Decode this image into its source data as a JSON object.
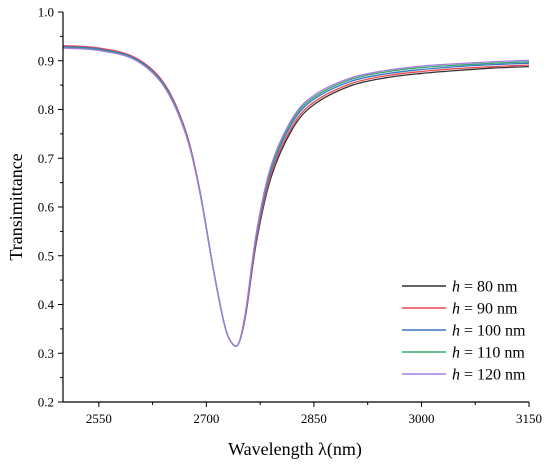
{
  "chart_data": {
    "type": "line",
    "title": "",
    "xlabel": "Wavelength λ(nm)",
    "ylabel": "Transimittance",
    "xlim": [
      2500,
      3150
    ],
    "ylim": [
      0.2,
      1.0
    ],
    "xticks": [
      2550,
      2700,
      2850,
      3000,
      3150
    ],
    "yticks": [
      0.2,
      0.3,
      0.4,
      0.5,
      0.6,
      0.7,
      0.8,
      0.9,
      1.0
    ],
    "ytick_labels": [
      "0.2",
      "0.3",
      "0.4",
      "0.5",
      "0.6",
      "0.7",
      "0.8",
      "0.9",
      "1.0"
    ],
    "x": [
      2500,
      2550,
      2600,
      2640,
      2670,
      2690,
      2710,
      2725,
      2735,
      2745,
      2755,
      2770,
      2790,
      2820,
      2850,
      2900,
      2950,
      3000,
      3050,
      3100,
      3150
    ],
    "legend_position": "bottom-right",
    "series": [
      {
        "name_prefix": "h",
        "name_suffix": " = 80 nm",
        "color": "#333333",
        "values": [
          0.93,
          0.925,
          0.906,
          0.855,
          0.76,
          0.64,
          0.47,
          0.36,
          0.322,
          0.32,
          0.38,
          0.53,
          0.66,
          0.76,
          0.81,
          0.848,
          0.865,
          0.874,
          0.88,
          0.885,
          0.888
        ]
      },
      {
        "name_prefix": "h",
        "name_suffix": " = 90 nm",
        "color": "#e8494f",
        "values": [
          0.931,
          0.926,
          0.907,
          0.856,
          0.761,
          0.64,
          0.47,
          0.36,
          0.322,
          0.32,
          0.382,
          0.535,
          0.666,
          0.766,
          0.815,
          0.852,
          0.869,
          0.878,
          0.884,
          0.888,
          0.891
        ]
      },
      {
        "name_prefix": "h",
        "name_suffix": " = 100 nm",
        "color": "#3a74c4",
        "values": [
          0.929,
          0.924,
          0.905,
          0.853,
          0.758,
          0.638,
          0.47,
          0.36,
          0.322,
          0.32,
          0.385,
          0.542,
          0.674,
          0.773,
          0.821,
          0.857,
          0.873,
          0.882,
          0.888,
          0.892,
          0.895
        ]
      },
      {
        "name_prefix": "h",
        "name_suffix": " = 110 nm",
        "color": "#35a86b",
        "values": [
          0.927,
          0.922,
          0.903,
          0.851,
          0.756,
          0.637,
          0.47,
          0.36,
          0.322,
          0.32,
          0.387,
          0.546,
          0.679,
          0.778,
          0.825,
          0.861,
          0.877,
          0.886,
          0.891,
          0.895,
          0.898
        ]
      },
      {
        "name_prefix": "h",
        "name_suffix": " = 120 nm",
        "color": "#a57be0",
        "values": [
          0.926,
          0.921,
          0.902,
          0.849,
          0.754,
          0.636,
          0.47,
          0.36,
          0.322,
          0.32,
          0.389,
          0.55,
          0.684,
          0.782,
          0.829,
          0.864,
          0.88,
          0.889,
          0.894,
          0.898,
          0.901
        ]
      }
    ]
  }
}
